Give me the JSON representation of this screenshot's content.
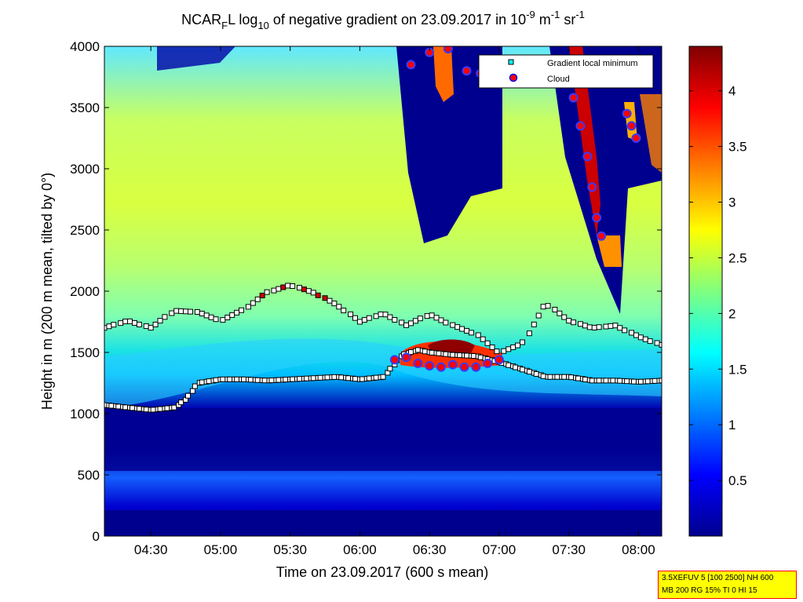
{
  "title": {
    "part1": "NCAR",
    "sub1": "F",
    "part2": "L log",
    "sub2": "10",
    "part3": " of negative gradient on 23.09.2017 in 10",
    "sup1": "-9",
    "part4": " m",
    "sup2": "-1",
    "part5": " sr",
    "sup3": "-1"
  },
  "info_box": {
    "line1": "3.5XEFUV 5 [100 2500] NH 600",
    "line2": "MB 200 RG 15% TI 0 HI 15"
  },
  "colors": {
    "background_field": "#00008f",
    "gradient_min_fill": "#ffffff",
    "cloud_edge": "#ffffff",
    "cloud_fill": "#ff0000",
    "legend_square": "#00ffff"
  },
  "chart_data": {
    "type": "heatmap",
    "title": "NCAR_F L log_10 of negative gradient on 23.09.2017 in 10^-9 m^-1 sr^-1",
    "xlabel": "Time on 23.09.2017 (600 s mean)",
    "ylabel": "Height in m (200 m mean, tilted by 0°)",
    "xlim": [
      "04:10",
      "08:10"
    ],
    "ylim": [
      0,
      4000
    ],
    "x_ticks": [
      "04:30",
      "05:00",
      "05:30",
      "06:00",
      "06:30",
      "07:00",
      "07:30",
      "08:00"
    ],
    "y_ticks": [
      0,
      500,
      1000,
      1500,
      2000,
      2500,
      3000,
      3500,
      4000
    ],
    "colorbar": {
      "colormap": "jet",
      "range": [
        0,
        4.4
      ],
      "ticks": [
        "0.5",
        "1",
        "1.5",
        "2",
        "2.5",
        "3",
        "3.5",
        "4"
      ]
    },
    "legend": {
      "placement": "top-right",
      "entries": [
        "Gradient local minimum",
        "Cloud"
      ]
    },
    "grid": false,
    "series": [
      {
        "name": "Gradient local minimum",
        "marker": "square",
        "layers": [
          {
            "x": [
              "04:10",
              "04:20",
              "04:30",
              "04:40",
              "04:45",
              "04:50",
              "05:00",
              "05:10",
              "05:20",
              "05:30",
              "05:40",
              "05:50",
              "06:00",
              "06:10",
              "06:18",
              "06:25",
              "06:30",
              "06:40",
              "06:50",
              "07:00",
              "07:10",
              "07:20",
              "07:30",
              "07:40",
              "07:50",
              "08:00",
              "08:10"
            ],
            "y": [
              1070,
              1050,
              1030,
              1050,
              1120,
              1250,
              1280,
              1280,
              1270,
              1280,
              1290,
              1300,
              1280,
              1300,
              1480,
              1520,
              1500,
              1480,
              1470,
              1420,
              1360,
              1300,
              1300,
              1270,
              1270,
              1260,
              1270
            ]
          },
          {
            "x": [
              "04:10",
              "04:20",
              "04:30",
              "04:40",
              "04:50",
              "05:00",
              "05:10",
              "05:20",
              "05:30",
              "05:40",
              "05:50",
              "06:00",
              "06:10",
              "06:20",
              "06:30",
              "06:40",
              "06:50",
              "07:00",
              "07:10",
              "07:20",
              "07:30",
              "07:40",
              "07:50",
              "08:00",
              "08:10"
            ],
            "y": [
              1700,
              1760,
              1700,
              1840,
              1830,
              1760,
              1850,
              1990,
              2050,
              1990,
              1890,
              1750,
              1820,
              1720,
              1810,
              1720,
              1650,
              1500,
              1570,
              1900,
              1760,
              1700,
              1720,
              1630,
              1560
            ]
          }
        ]
      },
      {
        "name": "Cloud",
        "marker": "circle",
        "layers": [
          {
            "x": [
              "06:15",
              "06:20",
              "06:25",
              "06:30",
              "06:35",
              "06:40",
              "06:45",
              "06:50",
              "06:55",
              "07:00"
            ],
            "y": [
              1440,
              1460,
              1410,
              1390,
              1380,
              1400,
              1380,
              1380,
              1410,
              1440
            ]
          },
          {
            "x": [
              "06:22",
              "06:30",
              "06:38",
              "06:46",
              "06:52"
            ],
            "y": [
              3850,
              3950,
              3980,
              3800,
              3780
            ]
          },
          {
            "x": [
              "07:32",
              "07:35",
              "07:38",
              "07:40",
              "07:42",
              "07:44"
            ],
            "y": [
              3580,
              3350,
              3100,
              2850,
              2600,
              2450
            ]
          },
          {
            "x": [
              "07:55",
              "07:57",
              "07:59"
            ],
            "y": [
              3450,
              3350,
              3250
            ]
          }
        ]
      }
    ]
  }
}
